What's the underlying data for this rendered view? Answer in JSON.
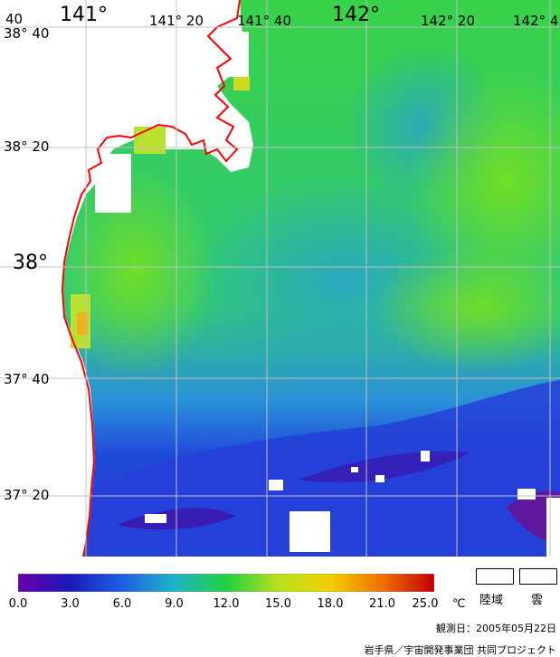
{
  "map": {
    "lon_labels": [
      "141°",
      "141° 20",
      "141° 40",
      "142°",
      "142° 20",
      "142° 4"
    ],
    "lat_labels": [
      "38° 40",
      "38° 20",
      "38°",
      "37° 40",
      "37° 20"
    ],
    "corner_label": "40",
    "colors": {
      "coastline": "#ff0000",
      "land_cloud": "#ffffff",
      "grid": "#c0c0c0"
    }
  },
  "colorbar": {
    "ticks": [
      "0.0",
      "3.0",
      "6.0",
      "9.0",
      "12.0",
      "15.0",
      "18.0",
      "21.0",
      "25.0"
    ],
    "unit": "℃",
    "stops": [
      "#6a00a8",
      "#1a1ab8",
      "#1f5fe0",
      "#20b4c8",
      "#20d040",
      "#b8e020",
      "#f0d000",
      "#f07000",
      "#c00000"
    ]
  },
  "legend": {
    "land_label": "陸域",
    "cloud_label": "雲"
  },
  "footer": {
    "observation_date": "観測日：2005年05月22日",
    "credit": "岩手県／宇宙開発事業団 共同プロジェクト"
  }
}
